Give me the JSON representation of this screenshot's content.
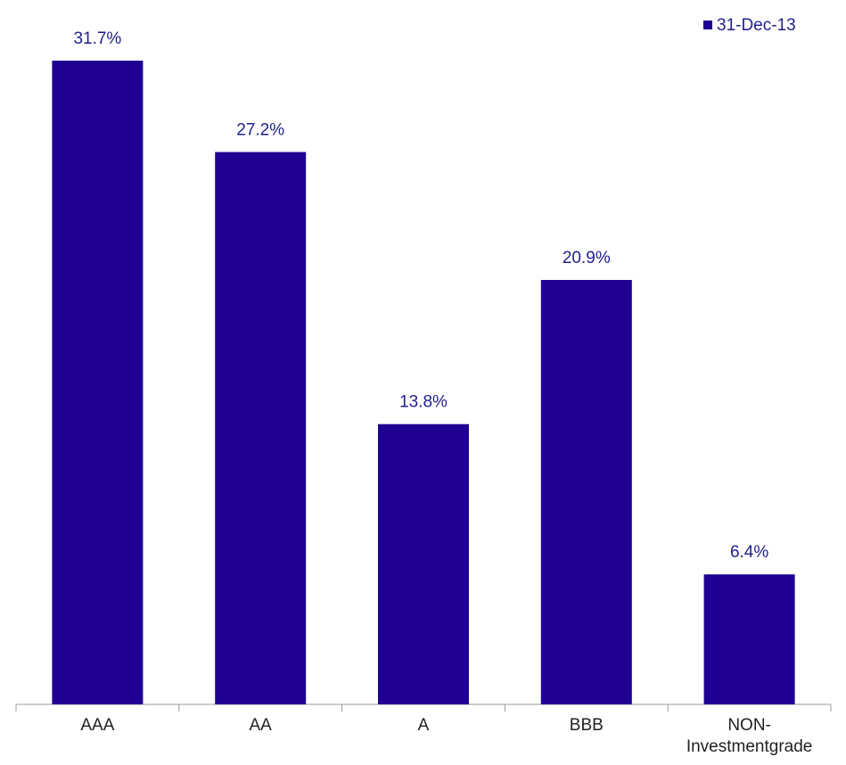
{
  "chart_data": {
    "type": "bar",
    "categories": [
      "AAA",
      "AA",
      "A",
      "BBB",
      "NON- Investmentgrade"
    ],
    "series": [
      {
        "name": "31-Dec-13",
        "color": "#1f0093",
        "values": [
          31.7,
          27.2,
          13.8,
          20.9,
          6.4
        ],
        "value_labels": [
          "31.7%",
          "27.2%",
          "13.8%",
          "20.9%",
          "6.4%"
        ]
      }
    ],
    "legend": "top-right"
  }
}
